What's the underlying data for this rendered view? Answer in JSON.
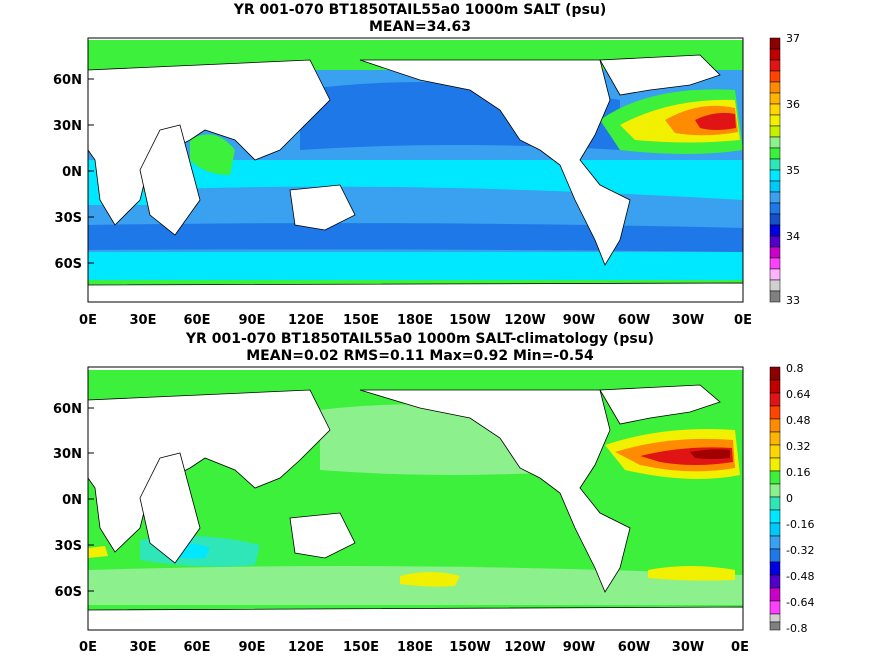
{
  "panels": [
    {
      "title_line1": "YR 001-070 BT1850TAIL55a0 1000m SALT (psu)",
      "title_line2": "MEAN=34.63",
      "lat_labels": [
        "60N",
        "30N",
        "0N",
        "30S",
        "60S"
      ],
      "lon_labels": [
        "0E",
        "30E",
        "60E",
        "90E",
        "120E",
        "150E",
        "180E",
        "150W",
        "120W",
        "90W",
        "60W",
        "30W",
        "0E"
      ],
      "colorbar_labels": [
        "37",
        "36",
        "35",
        "34",
        "33"
      ]
    },
    {
      "title_line1": "YR 001-070 BT1850TAIL55a0 1000m SALT-climatology (psu)",
      "title_line2": "MEAN=0.02   RMS=0.11   Max=0.92   Min=-0.54",
      "lat_labels": [
        "60N",
        "30N",
        "0N",
        "30S",
        "60S"
      ],
      "lon_labels": [
        "0E",
        "30E",
        "60E",
        "90E",
        "120E",
        "150E",
        "180E",
        "150W",
        "120W",
        "90W",
        "60W",
        "30W",
        "0E"
      ],
      "colorbar_labels": [
        "0.8",
        "0.64",
        "0.48",
        "0.32",
        "0.16",
        "0",
        "-0.16",
        "-0.32",
        "-0.48",
        "-0.64",
        "-0.8"
      ]
    }
  ],
  "colors": {
    "deep_blue": "#1e78e8",
    "mid_blue": "#3aa0f0",
    "cyan": "#00e8ff",
    "aqua": "#2ee6b8",
    "green": "#3cf03c",
    "light_green": "#8cf08c",
    "yellow": "#f0f000",
    "orange": "#ff8c00",
    "red": "#e01414",
    "dark_red": "#a00000",
    "land": "#ffffff"
  }
}
